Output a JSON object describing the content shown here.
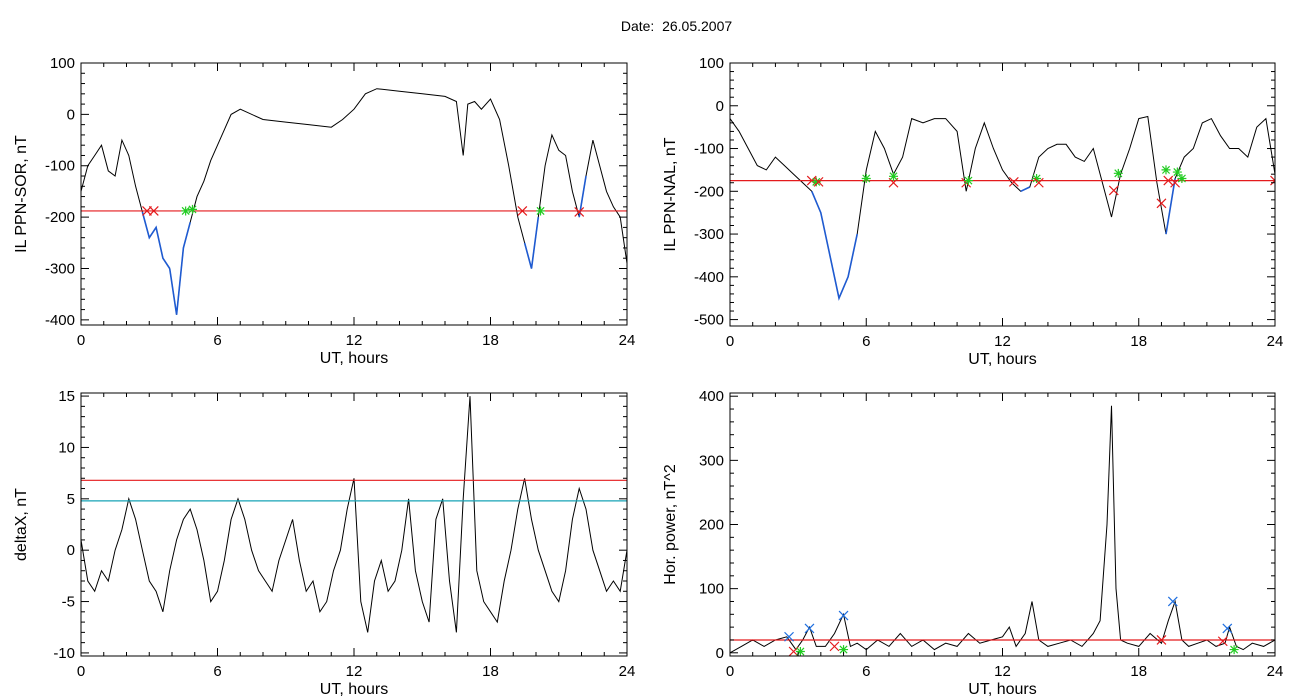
{
  "header": {
    "date_label": "Date:",
    "date_value": "26.05.2007"
  },
  "colors": {
    "trace": "#000000",
    "event": "#1f5bd1",
    "threshold": "#e41a1c",
    "threshold2": "#17a3b5",
    "start_marker": "#e41a1c",
    "end_marker": "#22cc22",
    "peak_marker": "#1f6fe0"
  },
  "chart_data": [
    {
      "type": "line",
      "ylabel": "IL PPN-SOR, nT",
      "xlabel": "UT, hours",
      "xlim": [
        0,
        24
      ],
      "ylim": [
        -410,
        100
      ],
      "xticks": [
        0,
        6,
        12,
        18,
        24
      ],
      "yticks": [
        100,
        0,
        -100,
        -200,
        -300,
        -400
      ],
      "grid": false,
      "series": [
        {
          "x": [
            0,
            0.3,
            0.6,
            0.9,
            1.2,
            1.5,
            1.8,
            2.1,
            2.4,
            2.7,
            3.0,
            3.3,
            3.6,
            3.9,
            4.2,
            4.5,
            4.8,
            5.1,
            5.4,
            5.7,
            6.0,
            6.3,
            6.6,
            7.0,
            8.0,
            9.0,
            10.0,
            11.0,
            11.5,
            12.0,
            12.5,
            13.0,
            14.0,
            15.0,
            16.0,
            16.5,
            16.8,
            17.0,
            17.3,
            17.6,
            18.0,
            18.4,
            18.8,
            19.2,
            19.5,
            19.8,
            20.1,
            20.4,
            20.7,
            21.0,
            21.3,
            21.6,
            21.9,
            22.2,
            22.5,
            22.8,
            23.1,
            23.4,
            23.7,
            24.0
          ],
          "y": [
            -150,
            -100,
            -80,
            -60,
            -110,
            -120,
            -50,
            -80,
            -140,
            -190,
            -240,
            -220,
            -280,
            -300,
            -390,
            -260,
            -210,
            -160,
            -130,
            -90,
            -60,
            -30,
            0,
            10,
            -10,
            -15,
            -20,
            -25,
            -10,
            10,
            40,
            50,
            45,
            40,
            35,
            25,
            -80,
            20,
            25,
            10,
            30,
            -10,
            -100,
            -200,
            -250,
            -300,
            -200,
            -100,
            -40,
            -70,
            -80,
            -150,
            -200,
            -120,
            -50,
            -100,
            -150,
            -180,
            -200,
            -290
          ]
        }
      ],
      "threshold": -188,
      "events": [
        {
          "x": [
            2.7,
            3.9
          ]
        },
        {
          "x": [
            3.9,
            4.9
          ]
        },
        {
          "x": [
            19.3,
            20.2
          ]
        },
        {
          "x": [
            21.9,
            22.2
          ]
        }
      ],
      "markers": [
        {
          "kind": "start",
          "x": 2.9,
          "y": -188
        },
        {
          "kind": "start",
          "x": 3.2,
          "y": -188
        },
        {
          "kind": "end",
          "x": 4.6,
          "y": -188
        },
        {
          "kind": "end",
          "x": 4.9,
          "y": -185
        },
        {
          "kind": "start",
          "x": 19.4,
          "y": -188
        },
        {
          "kind": "end",
          "x": 20.2,
          "y": -188
        },
        {
          "kind": "start",
          "x": 21.9,
          "y": -190
        }
      ]
    },
    {
      "type": "line",
      "ylabel": "IL PPN-NAL, nT",
      "xlabel": "UT, hours",
      "xlim": [
        0,
        24
      ],
      "ylim": [
        -515,
        100
      ],
      "xticks": [
        0,
        6,
        12,
        18,
        24
      ],
      "yticks": [
        100,
        0,
        -100,
        -200,
        -300,
        -400,
        -500
      ],
      "grid": false,
      "series": [
        {
          "x": [
            0,
            0.4,
            0.8,
            1.2,
            1.6,
            2.0,
            2.4,
            2.8,
            3.2,
            3.6,
            4.0,
            4.4,
            4.8,
            5.2,
            5.6,
            6.0,
            6.4,
            6.8,
            7.2,
            7.6,
            8.0,
            8.5,
            9.0,
            9.5,
            10.0,
            10.4,
            10.8,
            11.2,
            11.6,
            12.0,
            12.4,
            12.8,
            13.2,
            13.6,
            14.0,
            14.4,
            14.8,
            15.2,
            15.6,
            16.0,
            16.4,
            16.8,
            17.2,
            17.6,
            18.0,
            18.4,
            18.8,
            19.2,
            19.6,
            20.0,
            20.4,
            20.8,
            21.2,
            21.6,
            22.0,
            22.4,
            22.8,
            23.2,
            23.6,
            24.0
          ],
          "y": [
            -30,
            -60,
            -100,
            -140,
            -150,
            -120,
            -140,
            -160,
            -180,
            -200,
            -250,
            -350,
            -450,
            -400,
            -300,
            -150,
            -60,
            -100,
            -160,
            -120,
            -30,
            -40,
            -30,
            -30,
            -60,
            -200,
            -100,
            -40,
            -100,
            -150,
            -180,
            -200,
            -190,
            -120,
            -100,
            -90,
            -90,
            -120,
            -130,
            -100,
            -180,
            -260,
            -160,
            -100,
            -30,
            -25,
            -180,
            -300,
            -170,
            -120,
            -100,
            -40,
            -30,
            -70,
            -100,
            -100,
            -120,
            -50,
            -30,
            -160
          ]
        }
      ],
      "threshold": -175,
      "events": [
        {
          "x": [
            3.5,
            5.9
          ]
        },
        {
          "x": [
            12.7,
            13.3
          ]
        },
        {
          "x": [
            16.6,
            17.0
          ]
        },
        {
          "x": [
            18.9,
            19.9
          ]
        }
      ],
      "markers": [
        {
          "kind": "start",
          "x": 3.6,
          "y": -175
        },
        {
          "kind": "end",
          "x": 3.8,
          "y": -178
        },
        {
          "kind": "start",
          "x": 3.9,
          "y": -178
        },
        {
          "kind": "end",
          "x": 6.0,
          "y": -170
        },
        {
          "kind": "start",
          "x": 7.2,
          "y": -180
        },
        {
          "kind": "end",
          "x": 7.2,
          "y": -165
        },
        {
          "kind": "start",
          "x": 10.4,
          "y": -180
        },
        {
          "kind": "end",
          "x": 10.5,
          "y": -175
        },
        {
          "kind": "start",
          "x": 12.5,
          "y": -178
        },
        {
          "kind": "end",
          "x": 13.5,
          "y": -170
        },
        {
          "kind": "start",
          "x": 13.6,
          "y": -180
        },
        {
          "kind": "start",
          "x": 16.9,
          "y": -198
        },
        {
          "kind": "end",
          "x": 17.1,
          "y": -158
        },
        {
          "kind": "start",
          "x": 19.0,
          "y": -228
        },
        {
          "kind": "end",
          "x": 19.2,
          "y": -150
        },
        {
          "kind": "start",
          "x": 19.3,
          "y": -175
        },
        {
          "kind": "start",
          "x": 19.6,
          "y": -180
        },
        {
          "kind": "end",
          "x": 19.7,
          "y": -155
        },
        {
          "kind": "end",
          "x": 19.9,
          "y": -170
        },
        {
          "kind": "start",
          "x": 24.0,
          "y": -175
        }
      ]
    },
    {
      "type": "line",
      "ylabel": "deltaX, nT",
      "xlabel": "UT, hours",
      "xlim": [
        0,
        24
      ],
      "ylim": [
        -10.3,
        15.3
      ],
      "xticks": [
        0,
        6,
        12,
        18,
        24
      ],
      "yticks": [
        15,
        10,
        5,
        0,
        -5,
        -10
      ],
      "grid": false,
      "series": [
        {
          "x": [
            0,
            0.3,
            0.6,
            0.9,
            1.2,
            1.5,
            1.8,
            2.1,
            2.4,
            2.7,
            3.0,
            3.3,
            3.6,
            3.9,
            4.2,
            4.5,
            4.8,
            5.1,
            5.4,
            5.7,
            6.0,
            6.3,
            6.6,
            6.9,
            7.2,
            7.5,
            7.8,
            8.1,
            8.4,
            8.7,
            9.0,
            9.3,
            9.6,
            9.9,
            10.2,
            10.5,
            10.8,
            11.1,
            11.4,
            11.7,
            12.0,
            12.3,
            12.6,
            12.9,
            13.2,
            13.5,
            13.8,
            14.1,
            14.4,
            14.7,
            15.0,
            15.3,
            15.6,
            15.9,
            16.2,
            16.5,
            16.8,
            17.1,
            17.4,
            17.7,
            18.0,
            18.3,
            18.6,
            18.9,
            19.2,
            19.5,
            19.8,
            20.1,
            20.4,
            20.7,
            21.0,
            21.3,
            21.6,
            21.9,
            22.2,
            22.5,
            22.8,
            23.1,
            23.4,
            23.7,
            24.0
          ],
          "y": [
            1,
            -3,
            -4,
            -2,
            -3,
            0,
            2,
            5,
            3,
            0,
            -3,
            -4,
            -6,
            -2,
            1,
            3,
            4,
            2,
            -1,
            -5,
            -4,
            -1,
            3,
            5,
            3,
            0,
            -2,
            -3,
            -4,
            -1,
            1,
            3,
            -1,
            -4,
            -3,
            -6,
            -5,
            -2,
            0,
            4,
            7,
            -5,
            -8,
            -3,
            -1,
            -4,
            -3,
            0,
            5,
            -2,
            -5,
            -7,
            3,
            5,
            -3,
            -8,
            5,
            15,
            -2,
            -5,
            -6,
            -7,
            -3,
            0,
            4,
            7,
            3,
            0,
            -2,
            -4,
            -5,
            -2,
            3,
            6,
            4,
            0,
            -2,
            -4,
            -3,
            -4,
            0
          ]
        }
      ],
      "threshold": 6.8,
      "threshold2": 4.8,
      "events": [],
      "markers": []
    },
    {
      "type": "line",
      "ylabel": "Hor. power, nT^2",
      "xlabel": "UT, hours",
      "xlim": [
        0,
        24
      ],
      "ylim": [
        -5,
        405
      ],
      "xticks": [
        0,
        6,
        12,
        18,
        24
      ],
      "yticks": [
        400,
        300,
        200,
        100,
        0
      ],
      "grid": false,
      "series": [
        {
          "x": [
            0,
            0.5,
            1.0,
            1.5,
            2.0,
            2.5,
            2.9,
            3.2,
            3.5,
            3.8,
            4.2,
            4.6,
            5.0,
            5.3,
            5.6,
            6.0,
            6.5,
            7.0,
            7.5,
            8.0,
            8.5,
            9.0,
            9.5,
            10.0,
            10.5,
            11.0,
            11.5,
            12.0,
            12.3,
            12.6,
            13.0,
            13.3,
            13.6,
            14.0,
            14.5,
            15.0,
            15.5,
            16.0,
            16.3,
            16.6,
            16.8,
            17.0,
            17.2,
            17.5,
            18.0,
            18.5,
            19.0,
            19.3,
            19.6,
            19.9,
            20.2,
            20.6,
            21.0,
            21.4,
            21.8,
            22.0,
            22.3,
            22.6,
            23.0,
            23.5,
            24.0
          ],
          "y": [
            0,
            10,
            20,
            10,
            20,
            25,
            5,
            20,
            40,
            10,
            10,
            30,
            60,
            10,
            15,
            5,
            20,
            10,
            30,
            10,
            20,
            5,
            15,
            10,
            30,
            15,
            20,
            25,
            40,
            10,
            30,
            80,
            20,
            10,
            15,
            20,
            10,
            30,
            50,
            200,
            385,
            100,
            20,
            15,
            10,
            30,
            15,
            50,
            80,
            20,
            10,
            15,
            20,
            10,
            15,
            40,
            10,
            5,
            15,
            10,
            20
          ]
        }
      ],
      "threshold": 20,
      "events": [],
      "markers": [
        {
          "kind": "peak",
          "x": 2.6,
          "y": 25
        },
        {
          "kind": "start",
          "x": 2.8,
          "y": 2
        },
        {
          "kind": "end",
          "x": 3.1,
          "y": 2
        },
        {
          "kind": "peak",
          "x": 3.5,
          "y": 38
        },
        {
          "kind": "peak",
          "x": 5.0,
          "y": 58
        },
        {
          "kind": "end",
          "x": 5.0,
          "y": 5
        },
        {
          "kind": "start",
          "x": 4.6,
          "y": 10
        },
        {
          "kind": "start",
          "x": 19.0,
          "y": 20
        },
        {
          "kind": "peak",
          "x": 19.5,
          "y": 80
        },
        {
          "kind": "start",
          "x": 21.7,
          "y": 18
        },
        {
          "kind": "peak",
          "x": 21.9,
          "y": 38
        },
        {
          "kind": "end",
          "x": 22.2,
          "y": 5
        }
      ]
    }
  ]
}
